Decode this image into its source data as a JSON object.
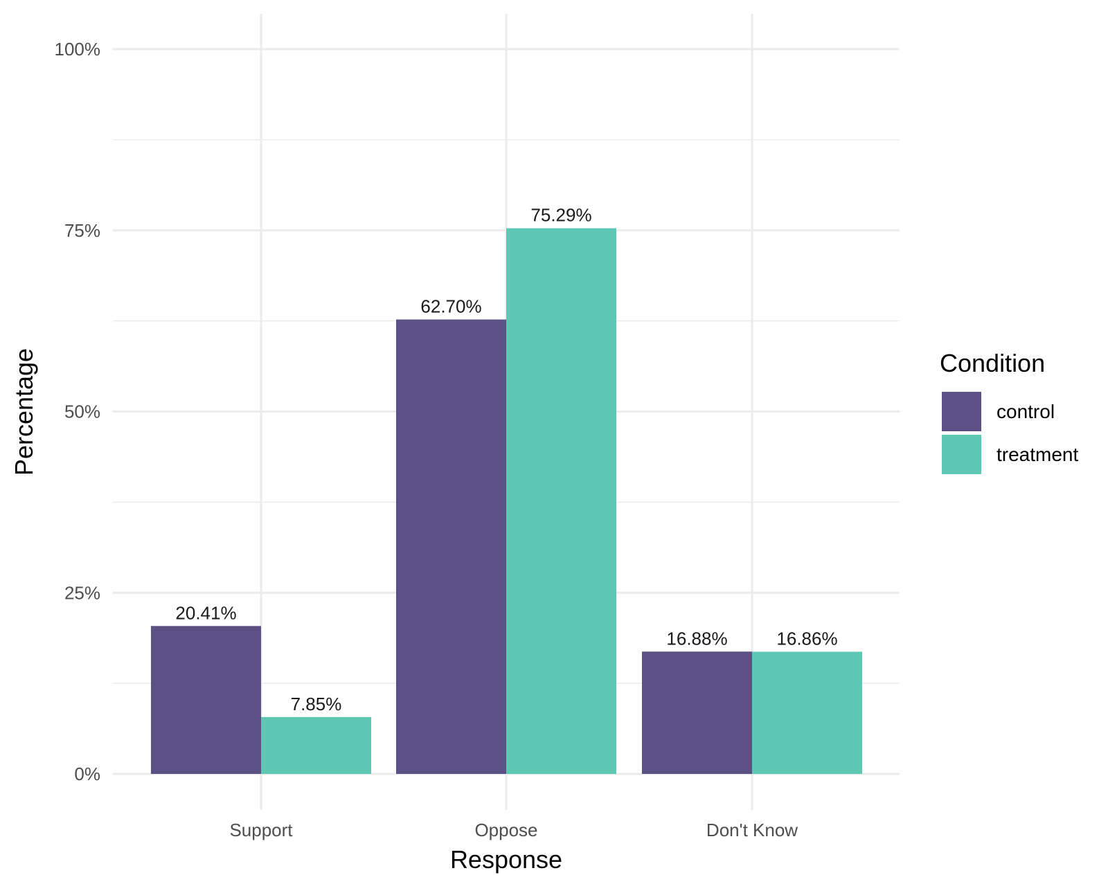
{
  "chart_data": {
    "type": "bar",
    "categories": [
      "Support",
      "Oppose",
      "Don't Know"
    ],
    "series": [
      {
        "name": "control",
        "values": [
          20.41,
          62.7,
          16.88
        ],
        "labels": [
          "20.41%",
          "62.70%",
          "16.88%"
        ],
        "color": "#5b5184"
      },
      {
        "name": "treatment",
        "values": [
          7.85,
          75.29,
          16.86
        ],
        "labels": [
          "7.85%",
          "75.29%",
          "16.86%"
        ],
        "color": "#5ec8b4"
      }
    ],
    "xlabel": "Response",
    "ylabel": "Percentage",
    "ylim": [
      0,
      100
    ],
    "yticks": [
      0,
      25,
      50,
      75,
      100
    ],
    "ytick_labels": [
      "0%",
      "25%",
      "50%",
      "75%",
      "100%"
    ],
    "grid": true,
    "legend": {
      "title": "Condition",
      "position": "right"
    }
  }
}
